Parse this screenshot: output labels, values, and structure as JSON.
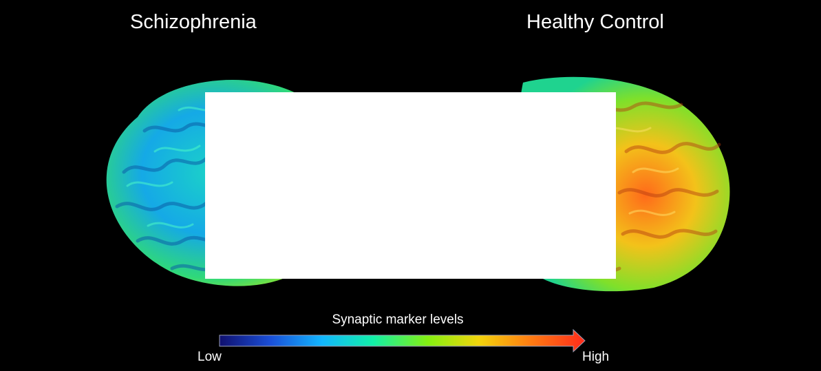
{
  "panels": {
    "left": {
      "title": "Schizophrenia"
    },
    "right": {
      "title": "Healthy Control"
    }
  },
  "colorbar": {
    "title": "Synaptic marker levels",
    "low_label": "Low",
    "high_label": "High",
    "gradient_colors": [
      "#10106e",
      "#1a4fd8",
      "#12b6ff",
      "#11f0a8",
      "#84f011",
      "#f2d40c",
      "#ff7d12",
      "#ff2b1b"
    ]
  },
  "colors": {
    "background": "#000000",
    "text": "#ffffff",
    "occluder": "#ffffff"
  }
}
